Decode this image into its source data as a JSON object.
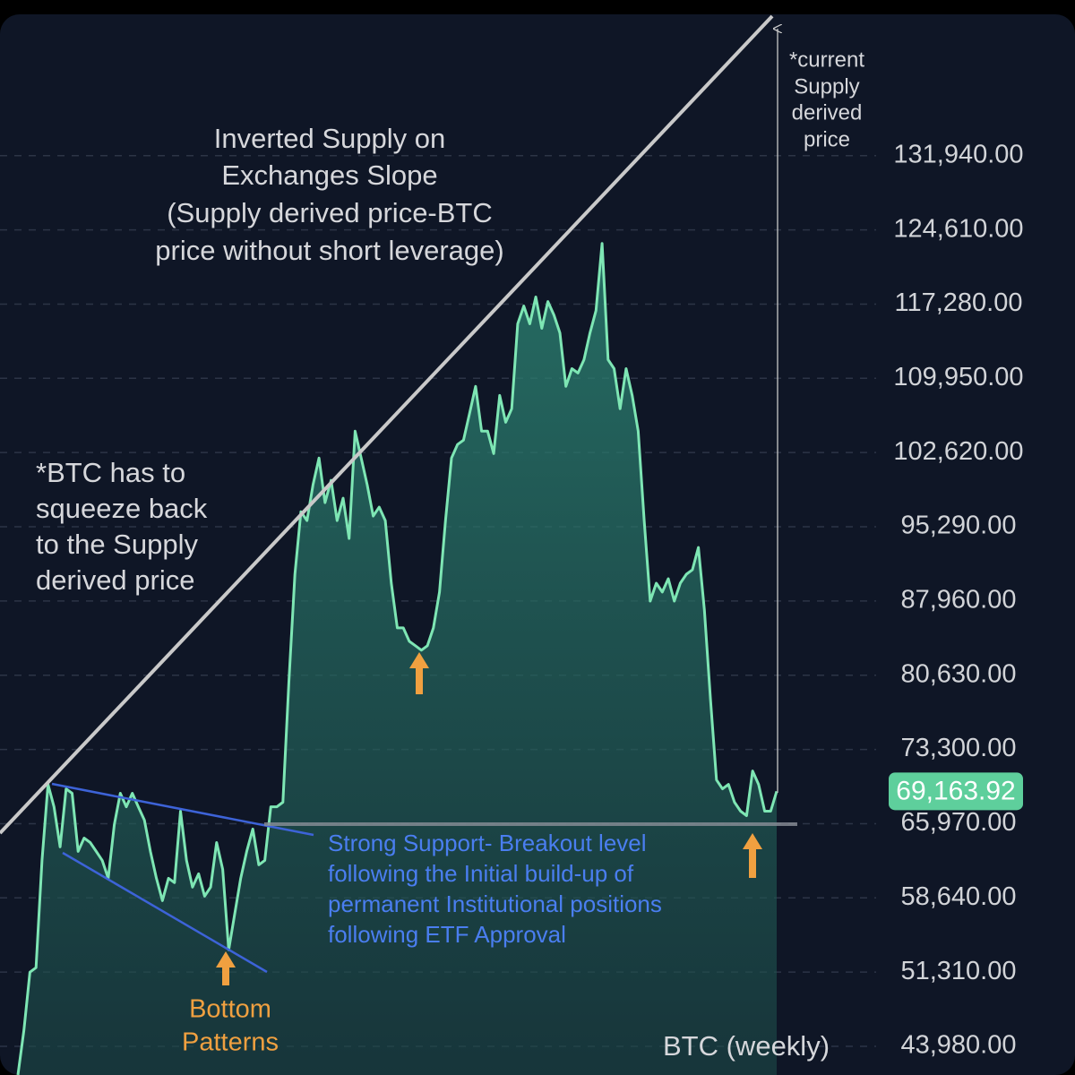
{
  "chart_data": {
    "type": "area",
    "series": [
      {
        "name": "BTC (weekly)",
        "color": "#7ee6b4",
        "values": [
          41150,
          45570,
          51310,
          51750,
          62350,
          69850,
          67640,
          63670,
          69410,
          68970,
          63230,
          64550,
          64110,
          63230,
          62350,
          60580,
          65880,
          68970,
          67640,
          68970,
          67640,
          66320,
          63230,
          60580,
          58370,
          60580,
          60140,
          67200,
          62350,
          59700,
          61020,
          58810,
          59700,
          64110,
          61460,
          53520,
          57050,
          60580,
          63230,
          65440,
          61900,
          62350,
          67640,
          67640,
          68090,
          80010,
          90600,
          96780,
          95900,
          99430,
          102080,
          97670,
          99870,
          95900,
          98110,
          94130,
          104730,
          102080,
          99430,
          96340,
          97230,
          95900,
          89720,
          85300,
          85300,
          83980,
          83540,
          83100,
          83540,
          85300,
          88840,
          95900,
          102080,
          103410,
          103850,
          106500,
          109150,
          104730,
          104730,
          102520,
          108260,
          105610,
          106940,
          115330,
          117090,
          115330,
          117980,
          114890,
          117530,
          116210,
          114440,
          109150,
          110910,
          110470,
          111790,
          114440,
          116650,
          123270,
          111790,
          110910,
          106940,
          110910,
          108260,
          104730,
          95900,
          87950,
          89720,
          88840,
          90160,
          87950,
          89720,
          90600,
          91040,
          93250,
          87070,
          78240,
          70290,
          69410,
          69850,
          68090,
          67200,
          66760,
          71180,
          69850,
          67200,
          67200,
          69163.92
        ]
      }
    ],
    "ylim": [
      41150,
      147310
    ],
    "yticks": [
      {
        "value": 43980,
        "label": "43,980.00"
      },
      {
        "value": 51310,
        "label": "51,310.00"
      },
      {
        "value": 58640,
        "label": "58,640.00"
      },
      {
        "value": 65970,
        "label": "65,970.00"
      },
      {
        "value": 73300,
        "label": "73,300.00"
      },
      {
        "value": 80630,
        "label": "80,630.00"
      },
      {
        "value": 87960,
        "label": "87,960.00"
      },
      {
        "value": 95290,
        "label": "95,290.00"
      },
      {
        "value": 102620,
        "label": "102,620.00"
      },
      {
        "value": 109950,
        "label": "109,950.00"
      },
      {
        "value": 117280,
        "label": "117,280.00"
      },
      {
        "value": 124610,
        "label": "124,610.00"
      },
      {
        "value": 131940,
        "label": "131,940.00"
      }
    ],
    "grid": true,
    "price_tag": {
      "value": 69163.92,
      "label": "69,163.92"
    },
    "annotations": {
      "slope": [
        "Inverted Supply on",
        "Exchanges Slope",
        "(Supply derived price-BTC",
        "price without short leverage)"
      ],
      "squeeze": [
        "*BTC has to",
        "squeeze back",
        "to the Supply",
        "derived price"
      ],
      "current": [
        "*current",
        "Supply",
        "derived",
        "price"
      ],
      "support": [
        "Strong Support- Breakout level",
        "following the Initial build-up of",
        "permanent Institutional positions",
        "following ETF Approval"
      ],
      "bottom": [
        "Bottom",
        "Patterns"
      ]
    }
  }
}
